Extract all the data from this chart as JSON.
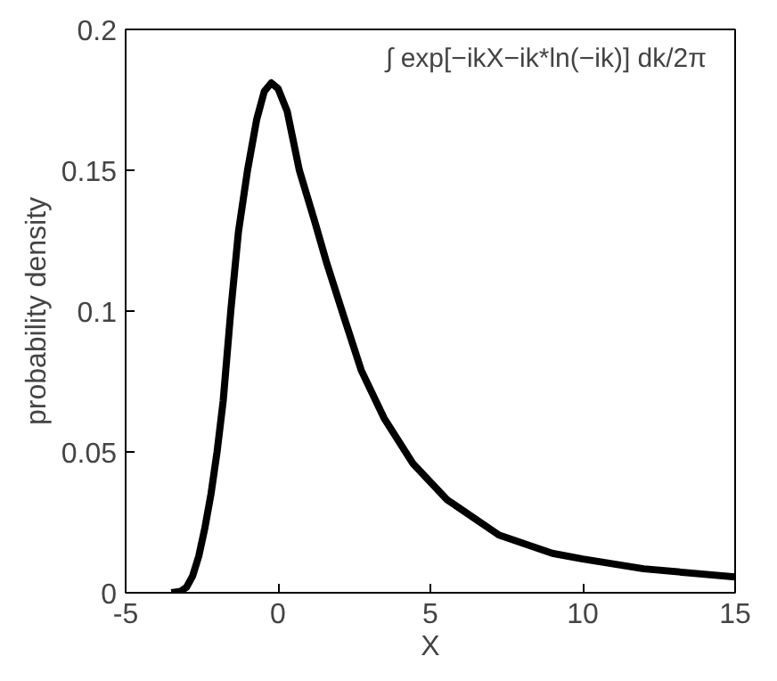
{
  "chart_data": {
    "type": "line",
    "xlabel": "X",
    "ylabel": "probability density",
    "annotations": [
      "∫ exp[−ikX−ik*ln(−ik)] dk/2π"
    ],
    "xlim": [
      -5,
      15
    ],
    "ylim": [
      0,
      0.2
    ],
    "xticks": [
      -5,
      0,
      5,
      10,
      15
    ],
    "yticks": [
      0,
      0.05,
      0.1,
      0.15,
      0.2
    ],
    "grid": false,
    "marker": "none",
    "line_style": "solid",
    "series": [
      {
        "color": "#000000",
        "x": [
          -3.5,
          -3.2,
          -3.0,
          -2.8,
          -2.6,
          -2.4,
          -2.2,
          -2.0,
          -1.8,
          -1.55,
          -1.3,
          -1.0,
          -0.7,
          -0.45,
          -0.22,
          0.0,
          0.3,
          0.7,
          1.2,
          1.6,
          2.16,
          2.73,
          3.48,
          4.42,
          5.55,
          7.25,
          9.0,
          10.0,
          12.0,
          15.0
        ],
        "values": [
          0,
          0.0005,
          0.002,
          0.006,
          0.013,
          0.023,
          0.035,
          0.05,
          0.068,
          0.1,
          0.128,
          0.15,
          0.168,
          0.178,
          0.181,
          0.179,
          0.171,
          0.15,
          0.132,
          0.117,
          0.098,
          0.079,
          0.062,
          0.046,
          0.033,
          0.0205,
          0.014,
          0.012,
          0.0085,
          0.0056
        ]
      }
    ]
  }
}
